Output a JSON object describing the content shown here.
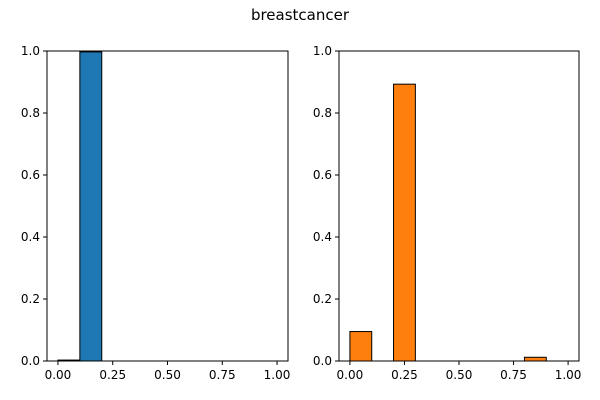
{
  "chart_data": {
    "title": "breastcancer",
    "panels": [
      {
        "type": "bar",
        "color": "#1f77b4",
        "edge_color": "#000000",
        "bins": [
          {
            "start": 0.0,
            "end": 0.1,
            "value": 0.003
          },
          {
            "start": 0.1,
            "end": 0.2,
            "value": 0.997
          }
        ],
        "xlim": [
          -0.05,
          1.05
        ],
        "ylim": [
          0,
          1.0
        ],
        "xticks": [
          0.0,
          0.25,
          0.5,
          0.75,
          1.0
        ],
        "xtick_labels": [
          "0.00",
          "0.25",
          "0.50",
          "0.75",
          "1.00"
        ],
        "yticks": [
          0.0,
          0.2,
          0.4,
          0.6,
          0.8,
          1.0
        ],
        "ytick_labels": [
          "0.0",
          "0.2",
          "0.4",
          "0.6",
          "0.8",
          "1.0"
        ],
        "grid": false
      },
      {
        "type": "bar",
        "color": "#ff7f0e",
        "edge_color": "#000000",
        "bins": [
          {
            "start": 0.0,
            "end": 0.1,
            "value": 0.095
          },
          {
            "start": 0.2,
            "end": 0.3,
            "value": 0.893
          },
          {
            "start": 0.8,
            "end": 0.9,
            "value": 0.012
          }
        ],
        "xlim": [
          -0.05,
          1.05
        ],
        "ylim": [
          0,
          1.0
        ],
        "xticks": [
          0.0,
          0.25,
          0.5,
          0.75,
          1.0
        ],
        "xtick_labels": [
          "0.00",
          "0.25",
          "0.50",
          "0.75",
          "1.00"
        ],
        "yticks": [
          0.0,
          0.2,
          0.4,
          0.6,
          0.8,
          1.0
        ],
        "ytick_labels": [
          "0.0",
          "0.2",
          "0.4",
          "0.6",
          "0.8",
          "1.0"
        ],
        "grid": false
      }
    ]
  }
}
